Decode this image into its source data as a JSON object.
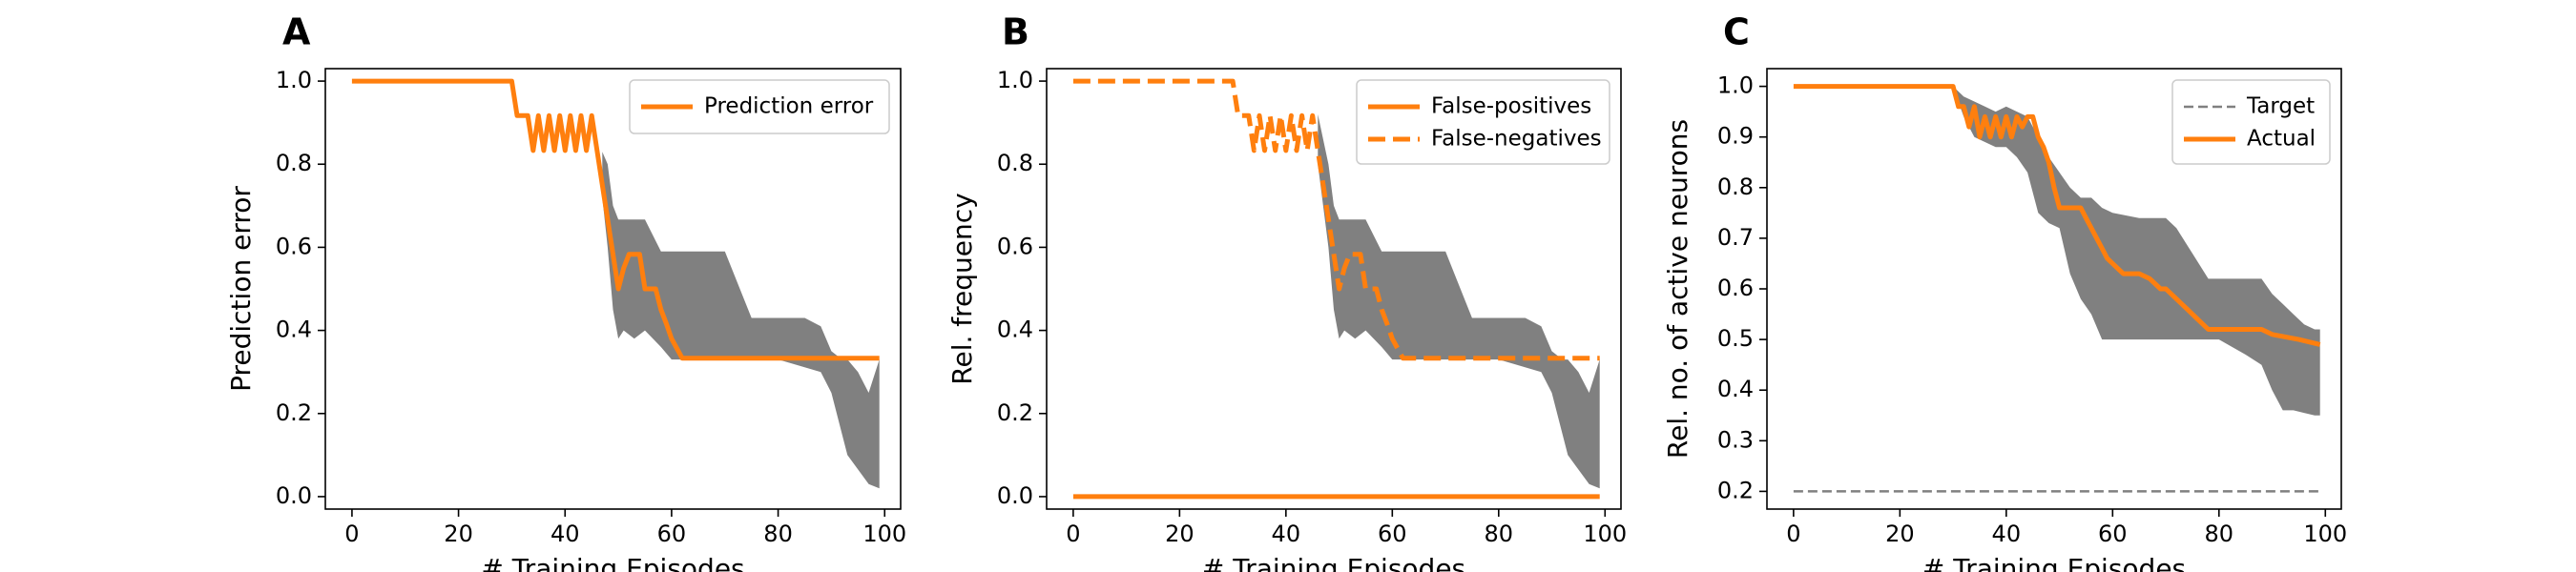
{
  "colors": {
    "band": "#808080",
    "line": "#ff7f0e",
    "target": "#808080",
    "axis": "#000000"
  },
  "chart_data": [
    {
      "panel": "A",
      "type": "line",
      "xlabel": "# Training Episodes",
      "ylabel": "Prediction error",
      "xlim": [
        -5,
        103
      ],
      "ylim": [
        -0.03,
        1.03
      ],
      "xticks": [
        0,
        20,
        40,
        60,
        80,
        100
      ],
      "xtick_labels": [
        "0",
        "20",
        "40",
        "60",
        "80",
        "100"
      ],
      "yticks": [
        0.0,
        0.2,
        0.4,
        0.6,
        0.8,
        1.0
      ],
      "ytick_labels": [
        "0.0",
        "0.2",
        "0.4",
        "0.6",
        "0.8",
        "1.0"
      ],
      "legend_position": "top-right",
      "band": {
        "x": [
          47,
          48,
          49,
          50,
          51,
          55,
          58,
          62,
          70,
          75,
          80,
          85,
          88,
          90,
          92,
          93,
          95,
          97,
          99,
          99,
          97,
          93,
          90,
          88,
          80,
          62,
          60,
          58,
          55,
          53,
          51,
          50,
          49,
          48,
          47
        ],
        "y": [
          0.83,
          0.8,
          0.7,
          0.667,
          0.667,
          0.667,
          0.59,
          0.59,
          0.59,
          0.43,
          0.43,
          0.43,
          0.41,
          0.35,
          0.33,
          0.33,
          0.3,
          0.25,
          0.33,
          0.02,
          0.03,
          0.1,
          0.25,
          0.3,
          0.33,
          0.33,
          0.33,
          0.36,
          0.4,
          0.38,
          0.4,
          0.38,
          0.45,
          0.6,
          0.72
        ]
      },
      "series": [
        {
          "name": "Prediction error",
          "style": "solid",
          "x": [
            0,
            30,
            31,
            33,
            34,
            35,
            36,
            37,
            38,
            39,
            40,
            41,
            42,
            43,
            44,
            45,
            46,
            47,
            48,
            49,
            50,
            51,
            52,
            53,
            54,
            55,
            56,
            57,
            58,
            59,
            60,
            62,
            99
          ],
          "y": [
            1.0,
            1.0,
            0.917,
            0.917,
            0.833,
            0.917,
            0.833,
            0.917,
            0.833,
            0.917,
            0.833,
            0.917,
            0.833,
            0.917,
            0.833,
            0.917,
            0.833,
            0.75,
            0.667,
            0.583,
            0.5,
            0.55,
            0.583,
            0.583,
            0.583,
            0.5,
            0.5,
            0.5,
            0.45,
            0.417,
            0.38,
            0.333,
            0.333
          ]
        }
      ]
    },
    {
      "panel": "B",
      "type": "line",
      "xlabel": "# Training Episodes",
      "ylabel": "Rel. frequency",
      "xlim": [
        -5,
        103
      ],
      "ylim": [
        -0.03,
        1.03
      ],
      "xticks": [
        0,
        20,
        40,
        60,
        80,
        100
      ],
      "xtick_labels": [
        "0",
        "20",
        "40",
        "60",
        "80",
        "100"
      ],
      "yticks": [
        0.0,
        0.2,
        0.4,
        0.6,
        0.8,
        1.0
      ],
      "ytick_labels": [
        "0.0",
        "0.2",
        "0.4",
        "0.6",
        "0.8",
        "1.0"
      ],
      "legend_position": "top-right",
      "band": {
        "x": [
          46,
          48,
          49,
          50,
          51,
          55,
          58,
          62,
          70,
          75,
          80,
          85,
          88,
          90,
          92,
          93,
          95,
          97,
          99,
          99,
          97,
          93,
          90,
          88,
          80,
          62,
          60,
          58,
          55,
          53,
          51,
          50,
          49,
          48,
          46
        ],
        "y": [
          0.92,
          0.8,
          0.7,
          0.667,
          0.667,
          0.667,
          0.59,
          0.59,
          0.59,
          0.43,
          0.43,
          0.43,
          0.41,
          0.35,
          0.33,
          0.33,
          0.3,
          0.25,
          0.33,
          0.02,
          0.03,
          0.1,
          0.25,
          0.3,
          0.33,
          0.33,
          0.33,
          0.36,
          0.4,
          0.38,
          0.4,
          0.38,
          0.45,
          0.6,
          0.8
        ]
      },
      "series": [
        {
          "name": "False-positives",
          "style": "solid",
          "x": [
            0,
            99
          ],
          "y": [
            0.0,
            0.0
          ]
        },
        {
          "name": "False-negatives",
          "style": "dashed",
          "x": [
            0,
            30,
            31,
            33,
            34,
            35,
            36,
            37,
            38,
            39,
            40,
            41,
            42,
            43,
            44,
            45,
            46,
            47,
            48,
            49,
            50,
            51,
            52,
            53,
            54,
            55,
            56,
            57,
            58,
            59,
            60,
            62,
            99
          ],
          "y": [
            1.0,
            1.0,
            0.917,
            0.917,
            0.833,
            0.917,
            0.833,
            0.917,
            0.833,
            0.917,
            0.833,
            0.917,
            0.833,
            0.917,
            0.833,
            0.917,
            0.833,
            0.75,
            0.667,
            0.583,
            0.5,
            0.55,
            0.583,
            0.583,
            0.583,
            0.5,
            0.5,
            0.5,
            0.45,
            0.417,
            0.38,
            0.333,
            0.333
          ]
        }
      ]
    },
    {
      "panel": "C",
      "type": "line",
      "xlabel": "# Training Episodes",
      "ylabel": "Rel. no. of active neurons",
      "xlim": [
        -5,
        103
      ],
      "ylim": [
        0.165,
        1.035
      ],
      "xticks": [
        0,
        20,
        40,
        60,
        80,
        100
      ],
      "xtick_labels": [
        "0",
        "20",
        "40",
        "60",
        "80",
        "100"
      ],
      "yticks": [
        0.2,
        0.3,
        0.4,
        0.5,
        0.6,
        0.7,
        0.8,
        0.9,
        1.0
      ],
      "ytick_labels": [
        "0.2",
        "0.3",
        "0.4",
        "0.5",
        "0.6",
        "0.7",
        "0.8",
        "0.9",
        "1.0"
      ],
      "legend_position": "top-right",
      "band": {
        "x": [
          30,
          32,
          34,
          36,
          38,
          40,
          42,
          44,
          46,
          47,
          48,
          50,
          52,
          54,
          56,
          58,
          60,
          65,
          70,
          72,
          75,
          78,
          80,
          85,
          88,
          90,
          92,
          94,
          96,
          98,
          99,
          99,
          98,
          96,
          94,
          92,
          90,
          88,
          85,
          80,
          75,
          70,
          65,
          60,
          58,
          56,
          54,
          52,
          50,
          48,
          46,
          44,
          42,
          40,
          38,
          36,
          34,
          32,
          30
        ],
        "y": [
          1.0,
          0.98,
          0.97,
          0.96,
          0.95,
          0.96,
          0.95,
          0.94,
          0.9,
          0.88,
          0.86,
          0.83,
          0.8,
          0.78,
          0.78,
          0.76,
          0.75,
          0.74,
          0.74,
          0.72,
          0.67,
          0.62,
          0.62,
          0.62,
          0.62,
          0.59,
          0.57,
          0.55,
          0.53,
          0.52,
          0.52,
          0.35,
          0.35,
          0.355,
          0.36,
          0.36,
          0.4,
          0.45,
          0.47,
          0.5,
          0.5,
          0.5,
          0.5,
          0.5,
          0.5,
          0.55,
          0.58,
          0.63,
          0.72,
          0.73,
          0.75,
          0.83,
          0.86,
          0.88,
          0.88,
          0.89,
          0.9,
          0.94,
          1.0
        ]
      },
      "series": [
        {
          "name": "Target",
          "style": "thin-dashed",
          "x": [
            0,
            99
          ],
          "y": [
            0.2,
            0.2
          ]
        },
        {
          "name": "Actual",
          "style": "solid",
          "x": [
            0,
            30,
            31,
            32,
            33,
            34,
            35,
            36,
            37,
            38,
            39,
            40,
            41,
            42,
            43,
            44,
            45,
            46,
            47,
            48,
            49,
            50,
            52,
            54,
            55,
            56,
            57,
            58,
            59,
            60,
            61,
            62,
            65,
            67,
            69,
            70,
            72,
            74,
            76,
            78,
            80,
            85,
            88,
            90,
            95,
            99
          ],
          "y": [
            1.0,
            1.0,
            0.96,
            0.96,
            0.92,
            0.96,
            0.9,
            0.94,
            0.9,
            0.94,
            0.9,
            0.94,
            0.9,
            0.94,
            0.92,
            0.94,
            0.94,
            0.9,
            0.88,
            0.85,
            0.8,
            0.76,
            0.76,
            0.76,
            0.74,
            0.72,
            0.7,
            0.68,
            0.66,
            0.65,
            0.64,
            0.63,
            0.63,
            0.62,
            0.6,
            0.6,
            0.58,
            0.56,
            0.54,
            0.52,
            0.52,
            0.52,
            0.52,
            0.51,
            0.5,
            0.49
          ]
        }
      ]
    }
  ]
}
